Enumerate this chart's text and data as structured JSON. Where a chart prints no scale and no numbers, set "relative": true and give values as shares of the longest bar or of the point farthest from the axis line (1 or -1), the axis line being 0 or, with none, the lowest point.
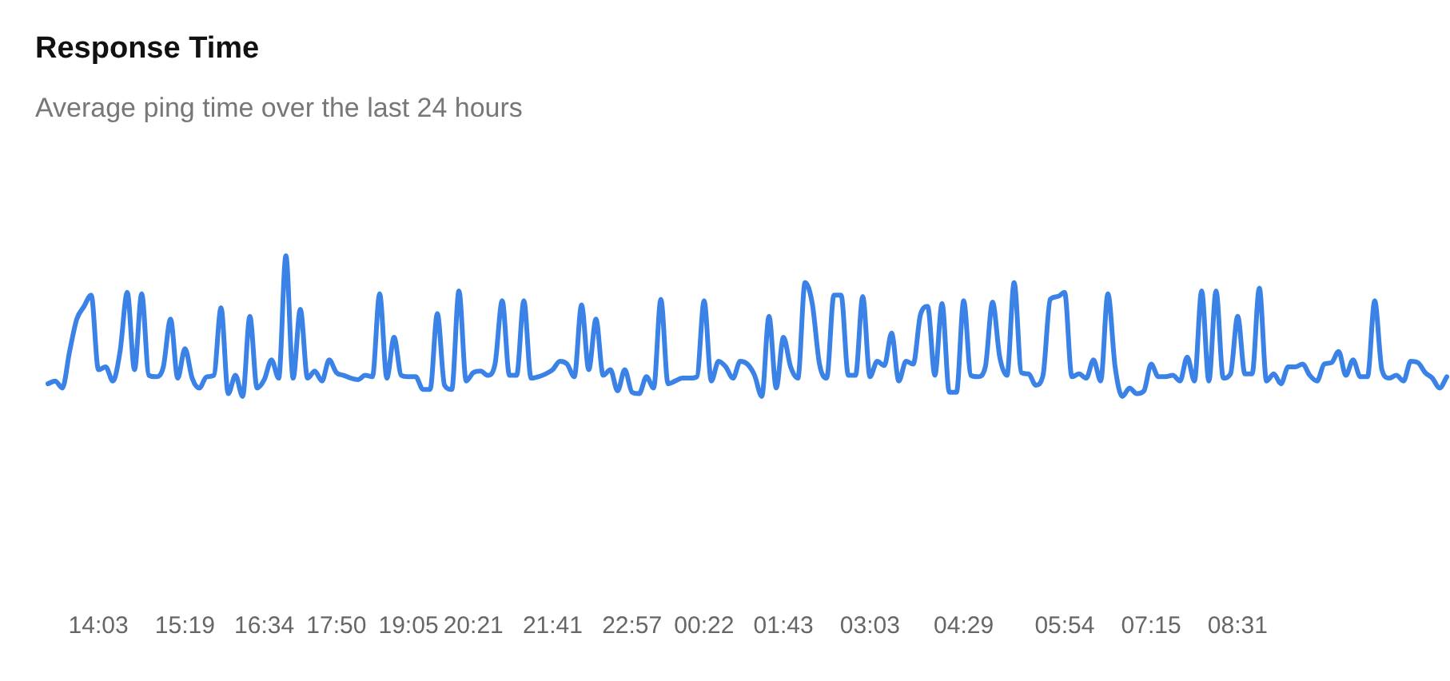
{
  "chart_data": {
    "type": "line",
    "title": "Response Time",
    "subtitle": "Average ping time over the last 24 hours",
    "relative": true,
    "legend": false,
    "marker": "none",
    "line_style": "solid",
    "categories": [
      null,
      null,
      null,
      null,
      null,
      null,
      null,
      "14:03",
      null,
      null,
      null,
      null,
      null,
      null,
      null,
      null,
      null,
      null,
      null,
      "15:19",
      null,
      null,
      null,
      null,
      null,
      null,
      null,
      null,
      null,
      null,
      "16:34",
      null,
      null,
      null,
      null,
      null,
      null,
      null,
      null,
      null,
      "17:50",
      null,
      null,
      null,
      null,
      null,
      null,
      null,
      null,
      null,
      "19:05",
      null,
      null,
      null,
      null,
      null,
      null,
      null,
      null,
      "20:21",
      null,
      null,
      null,
      null,
      null,
      null,
      null,
      null,
      null,
      null,
      "21:41",
      null,
      null,
      null,
      null,
      null,
      null,
      null,
      null,
      null,
      null,
      "22:57",
      null,
      null,
      null,
      null,
      null,
      null,
      null,
      null,
      null,
      "00:22",
      null,
      null,
      null,
      null,
      null,
      null,
      null,
      null,
      null,
      null,
      "01:43",
      null,
      null,
      null,
      null,
      null,
      null,
      null,
      null,
      null,
      null,
      null,
      "03:03",
      null,
      null,
      null,
      null,
      null,
      null,
      null,
      null,
      null,
      null,
      null,
      null,
      "04:29",
      null,
      null,
      null,
      null,
      null,
      null,
      null,
      null,
      null,
      null,
      null,
      null,
      null,
      "05:54",
      null,
      null,
      null,
      null,
      null,
      null,
      null,
      null,
      null,
      null,
      null,
      "07:15",
      null,
      null,
      null,
      null,
      null,
      null,
      null,
      null,
      null,
      null,
      null,
      "08:31",
      null,
      null,
      null,
      null,
      null,
      null,
      null,
      null,
      null,
      null,
      null,
      null,
      null,
      null,
      null,
      null,
      null,
      null,
      null,
      null,
      null,
      null,
      null,
      null,
      null,
      null,
      null,
      null,
      null
    ],
    "series": [
      {
        "color": "#3b82e6",
        "values": [
          0.09,
          0.11,
          0.06,
          0.32,
          0.55,
          0.64,
          0.72,
          0.19,
          0.21,
          0.11,
          0.32,
          0.74,
          0.19,
          0.73,
          0.15,
          0.14,
          0.21,
          0.55,
          0.13,
          0.34,
          0.13,
          0.06,
          0.14,
          0.15,
          0.63,
          0.02,
          0.15,
          0,
          0.57,
          0.06,
          0.12,
          0.26,
          0.13,
          1,
          0.13,
          0.62,
          0.13,
          0.18,
          0.11,
          0.26,
          0.17,
          0.15,
          0.13,
          0.12,
          0.15,
          0.14,
          0.73,
          0.13,
          0.42,
          0.15,
          0.14,
          0.14,
          0.05,
          0.05,
          0.59,
          0.08,
          0.05,
          0.75,
          0.11,
          0.17,
          0.18,
          0.15,
          0.23,
          0.68,
          0.15,
          0.15,
          0.68,
          0.13,
          0.14,
          0.16,
          0.19,
          0.25,
          0.23,
          0.14,
          0.65,
          0.19,
          0.55,
          0.15,
          0.19,
          0.04,
          0.19,
          0.03,
          0.02,
          0.14,
          0.06,
          0.69,
          0.09,
          0.11,
          0.13,
          0.13,
          0.14,
          0.68,
          0.11,
          0.25,
          0.21,
          0.13,
          0.25,
          0.23,
          0.15,
          0,
          0.57,
          0.06,
          0.42,
          0.21,
          0.13,
          0.81,
          0.66,
          0.23,
          0.13,
          0.72,
          0.72,
          0.15,
          0.15,
          0.71,
          0.14,
          0.25,
          0.22,
          0.45,
          0.11,
          0.25,
          0.23,
          0.58,
          0.64,
          0.15,
          0.66,
          0.03,
          0.03,
          0.68,
          0.15,
          0.14,
          0.21,
          0.67,
          0.28,
          0.15,
          0.81,
          0.17,
          0.16,
          0.08,
          0.15,
          0.69,
          0.71,
          0.74,
          0.14,
          0.16,
          0.13,
          0.26,
          0.11,
          0.73,
          0.21,
          0,
          0.06,
          0.02,
          0.04,
          0.23,
          0.14,
          0.14,
          0.15,
          0.11,
          0.28,
          0.11,
          0.75,
          0.11,
          0.75,
          0.13,
          0.16,
          0.57,
          0.16,
          0.16,
          0.77,
          0.11,
          0.16,
          0.09,
          0.21,
          0.21,
          0.23,
          0.15,
          0.11,
          0.23,
          0.24,
          0.32,
          0.15,
          0.26,
          0.14,
          0.14,
          0.68,
          0.19,
          0.13,
          0.15,
          0.11,
          0.25,
          0.24,
          0.17,
          0.13,
          0.06,
          0.14
        ]
      }
    ]
  }
}
